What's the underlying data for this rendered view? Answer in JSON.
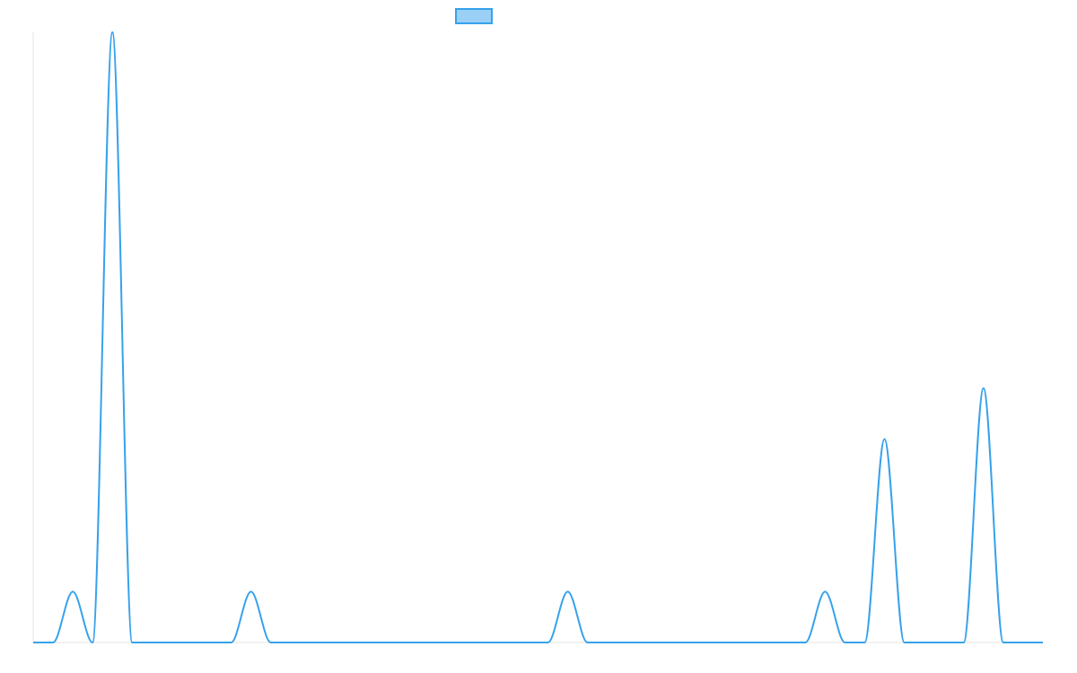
{
  "chart_data": {
    "type": "line",
    "title": "",
    "xlabel": "",
    "ylabel": "",
    "x": [
      0,
      1,
      2,
      3,
      4,
      5,
      6,
      7,
      8,
      9,
      10,
      11,
      12,
      13,
      14,
      15,
      16,
      17,
      18,
      19,
      20,
      21,
      22,
      23,
      24,
      25,
      26,
      27,
      28,
      29,
      30,
      31,
      32,
      33,
      34,
      35,
      36,
      37,
      38,
      39,
      40,
      41,
      42,
      43,
      44,
      45,
      46,
      47,
      48,
      49,
      50,
      51
    ],
    "series": [
      {
        "name": "",
        "color": "#36a2eb",
        "fill": "#9ad0f5",
        "values": [
          0,
          0,
          1,
          0,
          12,
          0,
          0,
          0,
          0,
          0,
          0,
          1,
          0,
          0,
          0,
          0,
          0,
          0,
          0,
          0,
          0,
          0,
          0,
          0,
          0,
          0,
          0,
          1,
          0,
          0,
          0,
          0,
          0,
          0,
          0,
          0,
          0,
          0,
          0,
          0,
          1,
          0,
          0,
          4,
          0,
          0,
          0,
          0,
          5,
          0,
          0,
          0
        ]
      }
    ],
    "ylim": [
      0,
      12
    ],
    "grid": false,
    "legend": "top-center",
    "axis_color": "#e6e6e6"
  }
}
